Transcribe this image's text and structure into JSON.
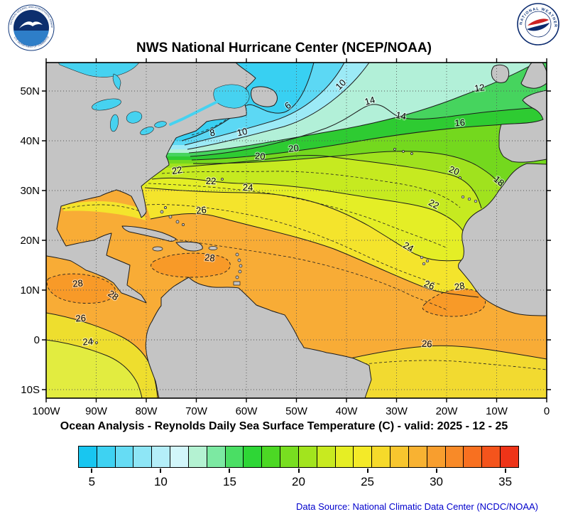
{
  "header": {
    "title": "NWS National Hurricane Center (NCEP/NOAA)",
    "noaa_ring_top": "NATIONAL OCEANIC AND ATMOSPHERIC ADMINISTRATION",
    "noaa_ring_bottom": "U.S. DEPARTMENT OF COMMERCE",
    "nws_ring_text": "NATIONAL WEATHER SERVICE"
  },
  "map": {
    "lat_labels": [
      "50N",
      "40N",
      "30N",
      "20N",
      "10N",
      "0",
      "10S"
    ],
    "lon_labels": [
      "100W",
      "90W",
      "80W",
      "70W",
      "60W",
      "50W",
      "40W",
      "30W",
      "20W",
      "10W",
      "0"
    ],
    "contour_labels": [
      {
        "v": "6"
      },
      {
        "v": "8"
      },
      {
        "v": "10"
      },
      {
        "v": "10"
      },
      {
        "v": "12"
      },
      {
        "v": "14"
      },
      {
        "v": "14"
      },
      {
        "v": "16"
      },
      {
        "v": "18"
      },
      {
        "v": "20"
      },
      {
        "v": "20"
      },
      {
        "v": "20"
      },
      {
        "v": "22"
      },
      {
        "v": "22"
      },
      {
        "v": "22"
      },
      {
        "v": "24"
      },
      {
        "v": "24"
      },
      {
        "v": "26"
      },
      {
        "v": "26"
      },
      {
        "v": "28"
      },
      {
        "v": "28"
      },
      {
        "v": "28"
      },
      {
        "v": "28"
      },
      {
        "v": "26"
      },
      {
        "v": "24"
      },
      {
        "v": "26"
      }
    ]
  },
  "subtitle": "Ocean Analysis - Reynolds Daily Sea Surface Temperature (C) - valid: 2025 - 12 - 25",
  "colorbar": {
    "tick_labels": [
      "5",
      "10",
      "15",
      "20",
      "25",
      "30",
      "35"
    ],
    "segment_colors": [
      "#18c6f0",
      "#3ed2f2",
      "#66dcf4",
      "#8ee6f6",
      "#b4eef8",
      "#d2f6fa",
      "#b4f2d2",
      "#7ce9a2",
      "#4ade64",
      "#2ed636",
      "#4cd824",
      "#78de20",
      "#a2e41e",
      "#c8ea20",
      "#e6ee24",
      "#f4ea28",
      "#f6da2a",
      "#f8c62e",
      "#f8b232",
      "#f89e2e",
      "#f88a28",
      "#f87020",
      "#f4541c",
      "#ee3418"
    ]
  },
  "footer": "Data Source: National Climatic Data Center (NCDC/NOAA)",
  "chart_data": {
    "type": "heatmap",
    "subtype": "filled-contour-map",
    "variable": "Reynolds Daily Sea Surface Temperature (C)",
    "valid_date": "2025 - 12 - 25",
    "lon_ticks_deg_west": [
      100,
      90,
      80,
      70,
      60,
      50,
      40,
      30,
      20,
      10,
      0
    ],
    "lat_ticks": [
      "50N",
      "40N",
      "30N",
      "20N",
      "10N",
      "0",
      "10S"
    ],
    "labeled_isotherms_c": [
      6,
      8,
      10,
      12,
      14,
      16,
      18,
      20,
      22,
      24,
      26,
      28
    ],
    "contour_interval_c": 2,
    "colorbar_range_c": [
      4,
      36
    ],
    "colorbar_ticks_c": [
      5,
      10,
      15,
      20,
      25,
      30,
      35
    ],
    "legend_position": "bottom"
  }
}
